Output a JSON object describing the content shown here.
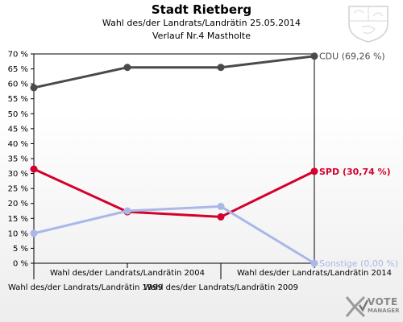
{
  "header": {
    "title": "Stadt Rietberg",
    "subtitle": "Wahl des/der Landrats/Landrätin 25.05.2014",
    "subtitle2": "Verlauf Nr.4 Mastholte"
  },
  "logo": {
    "line1": "VOTE",
    "line2": "MANAGER"
  },
  "chart_data": {
    "type": "line",
    "categories": [
      "Wahl des/der Landrats/Landrätin 1999",
      "Wahl des/der Landrats/Landrätin 2004",
      "Wahl des/der Landrats/Landrätin 2009",
      "Wahl des/der Landrats/Landrätin 2014"
    ],
    "ylim": [
      0,
      70
    ],
    "yticks": [
      "0 %",
      "5 %",
      "10 %",
      "15 %",
      "20 %",
      "25 %",
      "30 %",
      "35 %",
      "40 %",
      "45 %",
      "50 %",
      "55 %",
      "60 %",
      "65 %",
      "70 %"
    ],
    "grid": false,
    "series": [
      {
        "name": "CDU",
        "color": "#4a4a4a",
        "values": [
          58.7,
          65.5,
          65.5,
          69.26
        ],
        "end_label": "CDU (69,26 %)"
      },
      {
        "name": "SPD",
        "color": "#d4002e",
        "values": [
          31.5,
          17.2,
          15.5,
          30.74
        ],
        "end_label": "SPD (30,74 %)"
      },
      {
        "name": "Sonstige",
        "color": "#aab8e8",
        "values": [
          10.0,
          17.5,
          19.0,
          0.0
        ],
        "end_label": "Sonstige (0,00 %)"
      }
    ]
  }
}
